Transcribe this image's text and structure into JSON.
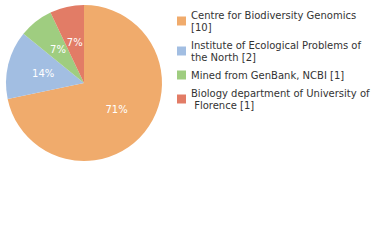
{
  "chart_data": {
    "type": "pie",
    "categories": [
      "Centre for Biodiversity Genomics [10]",
      "Institute of Ecological Problems of the North [2]",
      "Mined from GenBank, NCBI [1]",
      "Biology department of University of Florence [1]"
    ],
    "values": [
      71,
      14,
      7,
      7
    ],
    "value_labels": [
      "71%",
      "14%",
      "7%",
      "7%"
    ],
    "colors": [
      "#f0ab6c",
      "#a2bee2",
      "#9fcd80",
      "#e27c66"
    ],
    "data_labels": true,
    "legend": "top-right"
  }
}
